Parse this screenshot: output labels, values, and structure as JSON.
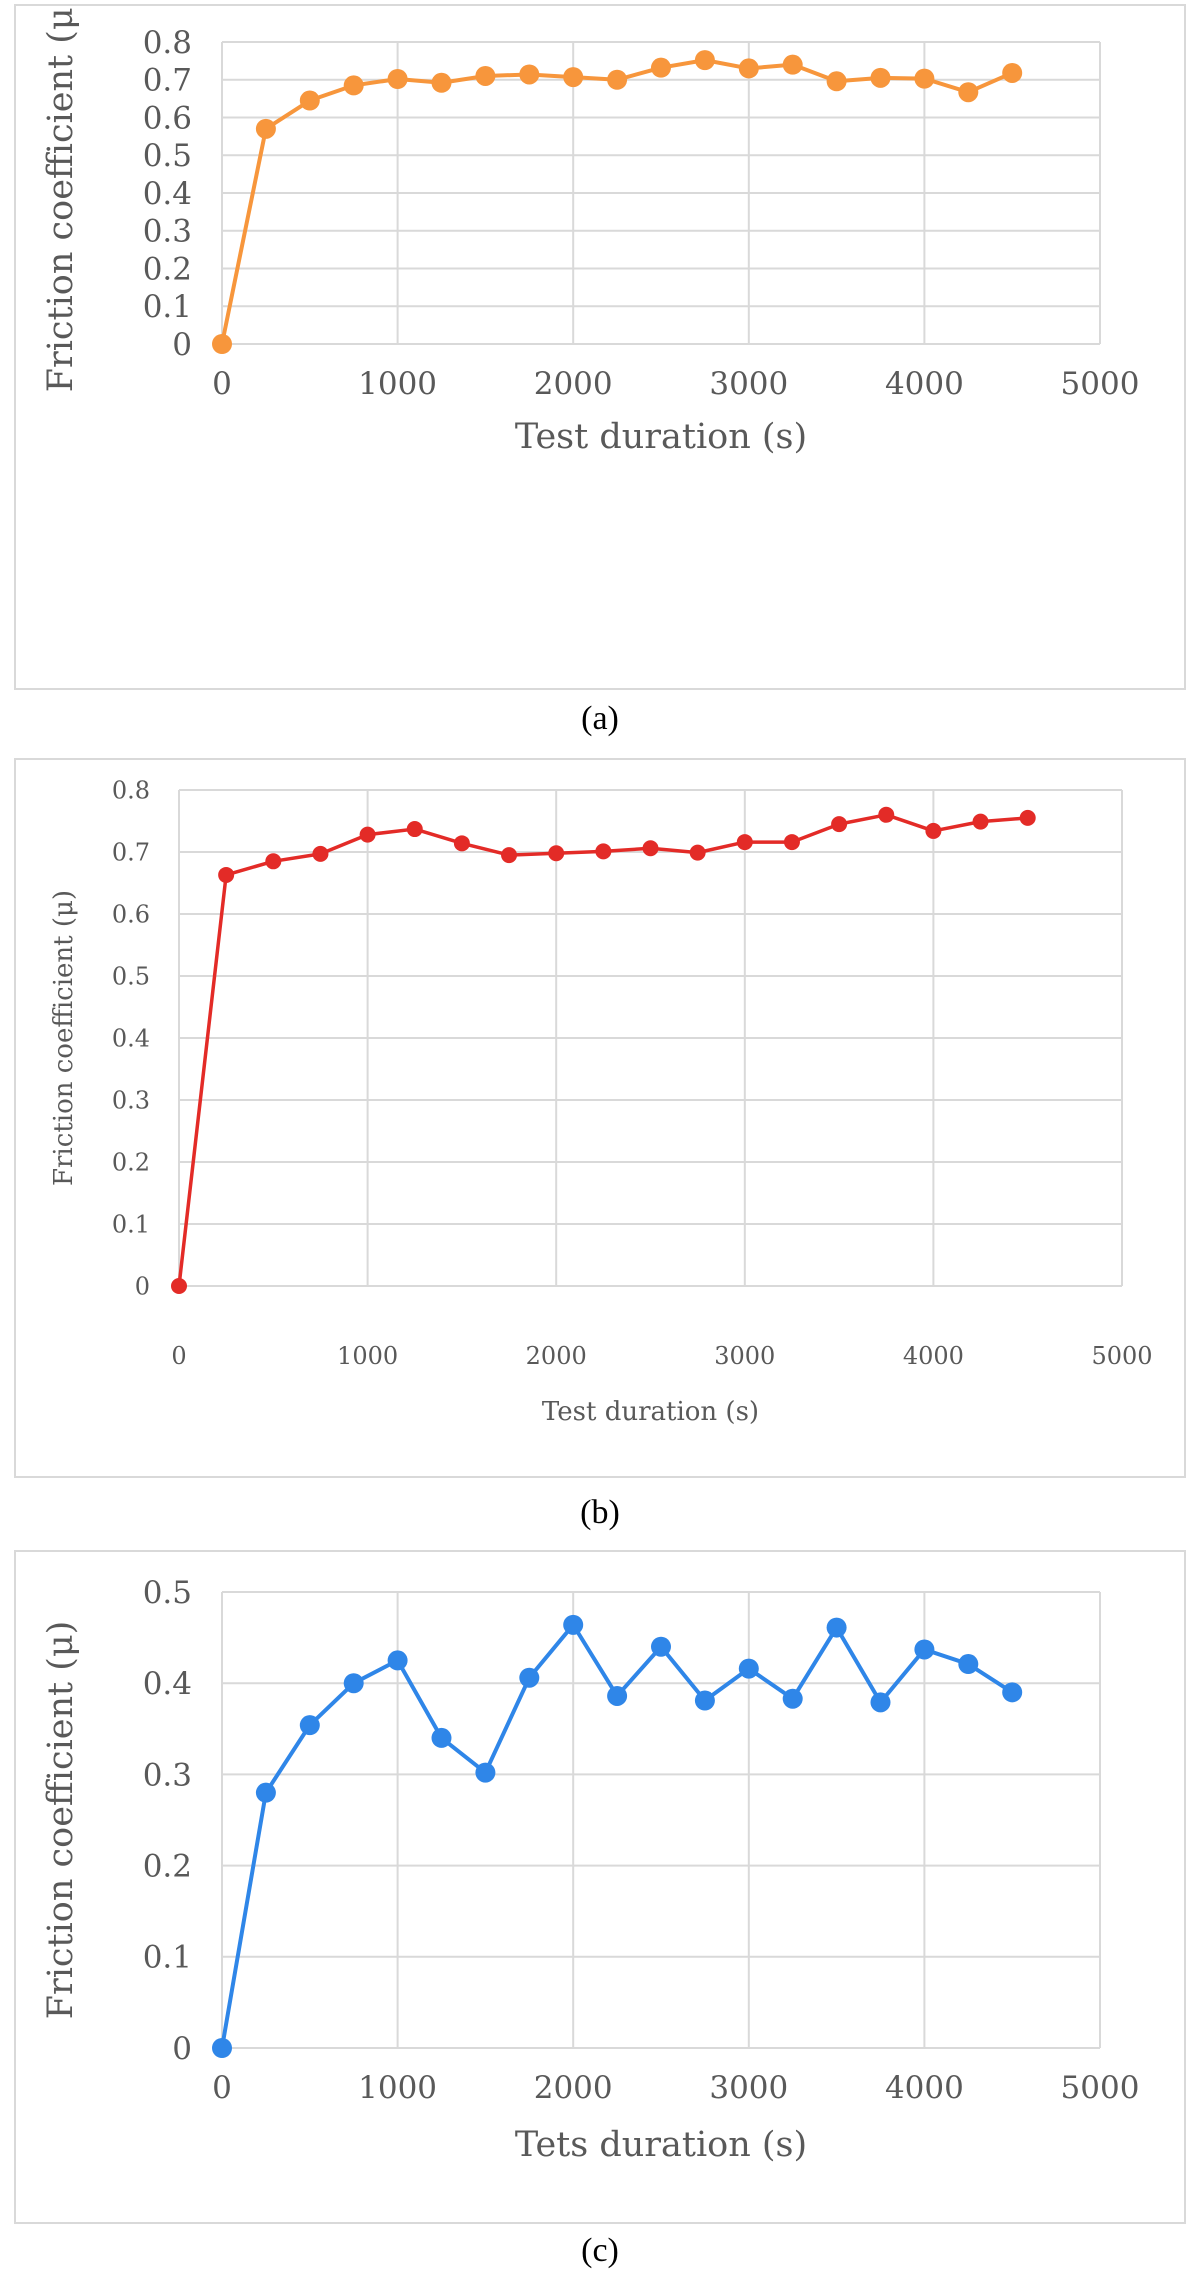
{
  "colors": {
    "grid": "#d9d9d9",
    "text": "#595959",
    "border": "#d9d9d9"
  },
  "captions": [
    "(a)",
    "(b)",
    "(c)"
  ],
  "chart_data": [
    {
      "type": "line",
      "marker": "circle",
      "color": "#f7963c",
      "x": [
        0,
        250,
        500,
        750,
        1000,
        1250,
        1500,
        1750,
        2000,
        2250,
        2500,
        2750,
        3000,
        3250,
        3500,
        3750,
        4000,
        4250,
        4500
      ],
      "series": [
        {
          "values": [
            0,
            0.57,
            0.645,
            0.685,
            0.702,
            0.692,
            0.71,
            0.714,
            0.707,
            0.7,
            0.732,
            0.752,
            0.73,
            0.74,
            0.696,
            0.705,
            0.703,
            0.667,
            0.718
          ]
        }
      ],
      "xlim": [
        0,
        5000
      ],
      "ylim": [
        0,
        0.8
      ],
      "xticks": [
        "0",
        "1000",
        "2000",
        "3000",
        "4000",
        "5000"
      ],
      "yticks": [
        "0",
        "0.1",
        "0.2",
        "0.3",
        "0.4",
        "0.5",
        "0.6",
        "0.7",
        "0.8"
      ],
      "xlabel": "Test duration (s)",
      "ylabel": "Friction coefficient (μ)",
      "grid": true
    },
    {
      "type": "line",
      "marker": "circle",
      "color": "#e32b27",
      "x": [
        0,
        250,
        500,
        750,
        1000,
        1250,
        1500,
        1750,
        2000,
        2250,
        2500,
        2750,
        3000,
        3250,
        3500,
        3750,
        4000,
        4250,
        4500
      ],
      "series": [
        {
          "values": [
            0,
            0.663,
            0.685,
            0.697,
            0.728,
            0.737,
            0.714,
            0.695,
            0.698,
            0.701,
            0.706,
            0.699,
            0.716,
            0.716,
            0.745,
            0.76,
            0.734,
            0.749,
            0.755
          ]
        }
      ],
      "xlim": [
        0,
        5000
      ],
      "ylim": [
        0,
        0.8
      ],
      "xticks": [
        "0",
        "1000",
        "2000",
        "3000",
        "4000",
        "5000"
      ],
      "yticks": [
        "0",
        "0.1",
        "0.2",
        "0.3",
        "0.4",
        "0.5",
        "0.6",
        "0.7",
        "0.8"
      ],
      "xlabel": "Test duration (s)",
      "ylabel": "Friction coefficient (μ)",
      "grid": true
    },
    {
      "type": "line",
      "marker": "circle",
      "color": "#2f86e8",
      "x": [
        0,
        250,
        500,
        750,
        1000,
        1250,
        1500,
        1750,
        2000,
        2250,
        2500,
        2750,
        3000,
        3250,
        3500,
        3750,
        4000,
        4250,
        4500
      ],
      "series": [
        {
          "values": [
            0,
            0.28,
            0.354,
            0.4,
            0.425,
            0.34,
            0.302,
            0.406,
            0.464,
            0.386,
            0.44,
            0.381,
            0.416,
            0.383,
            0.461,
            0.379,
            0.437,
            0.421,
            0.39
          ]
        }
      ],
      "xlim": [
        0,
        5000
      ],
      "ylim": [
        0,
        0.5
      ],
      "xticks": [
        "0",
        "1000",
        "2000",
        "3000",
        "4000",
        "5000"
      ],
      "yticks": [
        "0",
        "0.1",
        "0.2",
        "0.3",
        "0.4",
        "0.5"
      ],
      "xlabel": "Tets duration (s)",
      "ylabel": "Friction coefficient (μ)",
      "grid": true
    }
  ]
}
